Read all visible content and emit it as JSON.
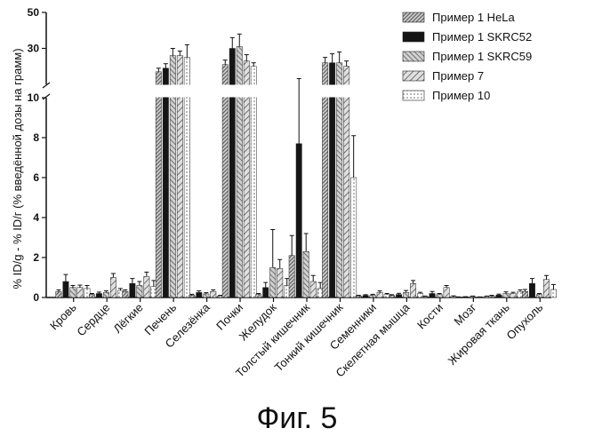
{
  "caption": "Фиг. 5",
  "chart_data": {
    "type": "bar",
    "ylabel": "% ID/g - % ID/г (% введённой дозы на грамм)",
    "xlabel": "",
    "title": "",
    "axis_break": true,
    "ylim_lower": [
      0,
      10
    ],
    "ylim_upper": [
      10,
      50
    ],
    "yticks_lower": [
      "0",
      "2",
      "4",
      "6",
      "8",
      "10"
    ],
    "yticks_upper": [
      "10",
      "30",
      "50"
    ],
    "legend_position": "top-right",
    "categories": [
      "Кровь",
      "Сердце",
      "Лёгкие",
      "Печень",
      "Селезёнка",
      "Почки",
      "Желудок",
      "Толстый кишечник",
      "Тонкий кишечник",
      "Семенники",
      "Скелетная мышца",
      "Кости",
      "Мозг",
      "Жировая ткань",
      "Опухоль"
    ],
    "series": [
      {
        "name": "Пример 1 HeLa",
        "color": "#707070",
        "pattern": "hatch-dense",
        "values": [
          0.3,
          0.15,
          0.3,
          17,
          0.12,
          21,
          0.15,
          2.1,
          22,
          0.08,
          0.1,
          0.05,
          0.02,
          0.08,
          0.3
        ],
        "errors": [
          0.08,
          0.05,
          0.08,
          2,
          0.04,
          2.5,
          0.05,
          1.0,
          3,
          0.03,
          0.04,
          0.02,
          0.01,
          0.03,
          0.1
        ]
      },
      {
        "name": "Пример 1 SKRC52",
        "color": "#151515",
        "pattern": "solid",
        "values": [
          0.8,
          0.2,
          0.7,
          19,
          0.25,
          30,
          0.5,
          7.7,
          22,
          0.1,
          0.15,
          0.2,
          0.03,
          0.12,
          0.7
        ],
        "errors": [
          0.35,
          0.07,
          0.25,
          2.5,
          0.08,
          6,
          0.25,
          5.5,
          5,
          0.04,
          0.06,
          0.1,
          0.01,
          0.05,
          0.25
        ]
      },
      {
        "name": "Пример 1 SKRC59",
        "color": "#8a8a8a",
        "pattern": "hatch",
        "values": [
          0.5,
          0.25,
          0.6,
          26,
          0.18,
          31,
          1.5,
          2.3,
          22,
          0.12,
          0.25,
          0.15,
          0.05,
          0.2,
          0.15
        ],
        "errors": [
          0.1,
          0.08,
          0.2,
          4,
          0.06,
          7,
          1.9,
          0.9,
          6,
          0.04,
          0.1,
          0.05,
          0.02,
          0.08,
          0.05
        ]
      },
      {
        "name": "Пример 7",
        "color": "#9a9a9a",
        "pattern": "hatch-wide",
        "values": [
          0.5,
          1.0,
          1.05,
          26,
          0.3,
          23,
          1.45,
          0.8,
          20,
          0.25,
          0.7,
          0.5,
          0.02,
          0.2,
          0.9
        ],
        "errors": [
          0.12,
          0.2,
          0.22,
          2.5,
          0.08,
          3.5,
          0.45,
          0.3,
          3,
          0.08,
          0.15,
          0.1,
          0.01,
          0.06,
          0.2
        ]
      },
      {
        "name": "Пример 10",
        "color": "#f0f0f0",
        "pattern": "dots",
        "values": [
          0.45,
          0.35,
          0.55,
          25,
          0.08,
          20,
          0.6,
          0.45,
          6.0,
          0.15,
          0.2,
          0.05,
          0.05,
          0.3,
          0.4
        ],
        "errors": [
          0.15,
          0.1,
          0.3,
          7,
          0.03,
          2,
          0.35,
          0.3,
          2.1,
          0.05,
          0.06,
          0.03,
          0.02,
          0.08,
          0.25
        ]
      }
    ]
  }
}
